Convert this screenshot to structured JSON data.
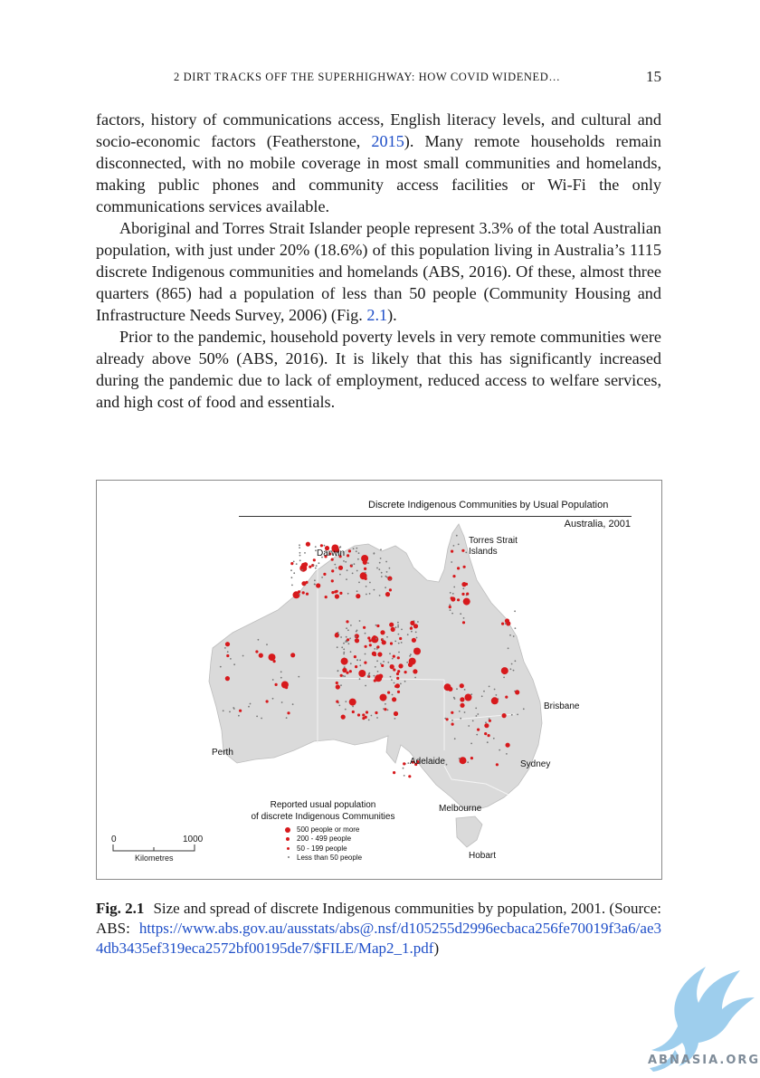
{
  "header": {
    "running_title": "2   DIRT TRACKS OFF THE SUPERHIGHWAY: HOW COVID WIDENED…",
    "page_number": "15"
  },
  "body": {
    "p1_before": "factors, history of communications access, English literacy levels, and cultural and socio-economic factors (Featherstone, ",
    "p1_link": "2015",
    "p1_after": "). Many remote households remain disconnected, with no mobile coverage in most small communities and homelands, making public phones and community access facilities or Wi-Fi the only communications services available.",
    "p2_before": "Aboriginal and Torres Strait Islander people represent 3.3% of the total Australian population, with just under 20% (18.6%) of this population living in Australia’s 1115 discrete Indigenous communities and homelands (ABS, 2016). Of these, almost three quarters (865) had a population of less than 50 people (Community Housing and Infrastructure Needs Survey, 2006) (Fig. ",
    "p2_link": "2.1",
    "p2_after": ").",
    "p3": "Prior to the pandemic, household poverty levels in very remote communities were already above 50% (ABS, 2016). It is likely that this has significantly increased during the pandemic due to lack of employment, reduced access to welfare services, and high cost of food and essentials."
  },
  "figure": {
    "map_title": "Discrete Indigenous Communities by Usual Population",
    "map_subtitle": "Australia, 2001",
    "cities": {
      "darwin": "Darwin",
      "torres": "Torres Strait Islands",
      "brisbane": "Brisbane",
      "perth": "Perth",
      "adelaide": "Adelaide",
      "sydney": "Sydney",
      "melbourne": "Melbourne",
      "hobart": "Hobart"
    },
    "legend": {
      "title_line1": "Reported usual population",
      "title_line2": "of discrete Indigenous Communities",
      "items": [
        "500 people or more",
        "200 - 499 people",
        "50 - 199 people",
        "Less than 50 people"
      ]
    },
    "scale": {
      "zero": "0",
      "max": "1000",
      "unit": "Kilometres"
    },
    "colors": {
      "land": "#dadada",
      "community": "#d7191c",
      "small_community": "#777777"
    }
  },
  "caption": {
    "label": "Fig. 2.1",
    "text": "Size and spread of discrete Indigenous communities by population, 2001. (Source: ABS: ",
    "url": "https://www.abs.gov.au/ausstats/abs@.nsf/d105255d2996ecbaca256fe70019f3a6/ae34db3435ef319eca2572bf00195de7/$FILE/Map2_1.pdf",
    "close": ")"
  },
  "watermark": {
    "text": "ABNASIA.ORG"
  }
}
